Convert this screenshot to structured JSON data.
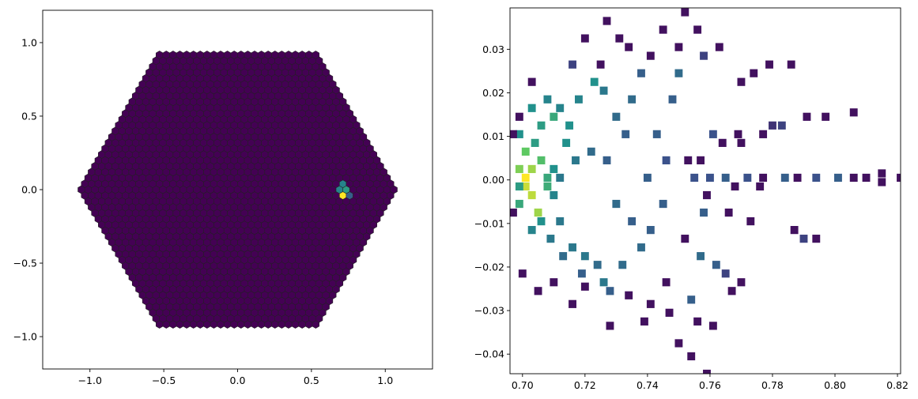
{
  "chart_data": [
    {
      "type": "scatter",
      "subtype": "hexagonal-camera-pixel-map",
      "title": "",
      "xlabel": "",
      "ylabel": "",
      "xlim": [
        -1.32,
        1.32
      ],
      "ylim": [
        -1.22,
        1.22
      ],
      "xticks": [
        -1.0,
        -0.5,
        0.0,
        0.5,
        1.0
      ],
      "xtick_labels": [
        "−1.0",
        "−0.5",
        "0.0",
        "0.5",
        "1.0"
      ],
      "yticks": [
        -1.0,
        -0.5,
        0.0,
        0.5,
        1.0
      ],
      "ytick_labels": [
        "−1.0",
        "−0.5",
        "0.0",
        "0.5",
        "1.0"
      ],
      "camera_radius": 1.1,
      "pixel_pitch": 0.046,
      "background_value": 0,
      "colormap": "viridis",
      "edge_color": "#222222",
      "bright_pixels": [
        {
          "x": 0.7,
          "y": 0.02,
          "value": 0.45
        },
        {
          "x": 0.74,
          "y": 0.02,
          "value": 0.55
        },
        {
          "x": 0.71,
          "y": -0.02,
          "value": 1.0
        },
        {
          "x": 0.76,
          "y": -0.02,
          "value": 0.3
        }
      ]
    },
    {
      "type": "heatmap",
      "subtype": "2d-histogram",
      "title": "",
      "xlabel": "",
      "ylabel": "",
      "xlim": [
        0.696,
        0.821
      ],
      "ylim": [
        -0.0445,
        0.0395
      ],
      "xticks": [
        0.7,
        0.72,
        0.74,
        0.76,
        0.78,
        0.8,
        0.82
      ],
      "xtick_labels": [
        "0.70",
        "0.72",
        "0.74",
        "0.76",
        "0.78",
        "0.80",
        "0.82"
      ],
      "yticks": [
        0.03,
        0.02,
        0.01,
        0.0,
        -0.01,
        -0.02,
        -0.03,
        -0.04
      ],
      "ytick_labels": [
        "0.03",
        "0.02",
        "0.01",
        "0.00",
        "−0.01",
        "−0.02",
        "−0.03",
        "−0.04"
      ],
      "colormap": "viridis",
      "x_bin_width": 0.0025,
      "y_bin_width": 0.00185,
      "bins": [
        [
          0.701,
          0.0005,
          1.0
        ],
        [
          0.701,
          -0.0015,
          0.92
        ],
        [
          0.703,
          0.0025,
          0.85
        ],
        [
          0.699,
          0.0025,
          0.8
        ],
        [
          0.703,
          -0.0035,
          0.9
        ],
        [
          0.706,
          0.0045,
          0.7
        ],
        [
          0.701,
          0.0065,
          0.75
        ],
        [
          0.704,
          0.0085,
          0.55
        ],
        [
          0.699,
          -0.0055,
          0.6
        ],
        [
          0.705,
          -0.0075,
          0.85
        ],
        [
          0.708,
          0.0005,
          0.6
        ],
        [
          0.708,
          -0.0015,
          0.62
        ],
        [
          0.71,
          0.0025,
          0.5
        ],
        [
          0.71,
          -0.0035,
          0.45
        ],
        [
          0.712,
          0.0005,
          0.4
        ],
        [
          0.699,
          0.0105,
          0.5
        ],
        [
          0.706,
          0.0125,
          0.55
        ],
        [
          0.71,
          0.0145,
          0.6
        ],
        [
          0.703,
          0.0165,
          0.5
        ],
        [
          0.708,
          0.0185,
          0.45
        ],
        [
          0.712,
          0.0165,
          0.45
        ],
        [
          0.715,
          0.0125,
          0.5
        ],
        [
          0.718,
          0.0185,
          0.45
        ],
        [
          0.714,
          0.0085,
          0.5
        ],
        [
          0.717,
          0.0045,
          0.4
        ],
        [
          0.706,
          -0.0095,
          0.5
        ],
        [
          0.703,
          -0.0115,
          0.45
        ],
        [
          0.709,
          -0.0135,
          0.4
        ],
        [
          0.712,
          -0.0095,
          0.4
        ],
        [
          0.716,
          -0.0155,
          0.4
        ],
        [
          0.713,
          -0.0175,
          0.35
        ],
        [
          0.72,
          -0.0175,
          0.4
        ],
        [
          0.724,
          -0.0195,
          0.35
        ],
        [
          0.719,
          -0.0215,
          0.3
        ],
        [
          0.726,
          -0.0235,
          0.4
        ],
        [
          0.723,
          0.0225,
          0.5
        ],
        [
          0.726,
          0.0205,
          0.4
        ],
        [
          0.73,
          0.0145,
          0.35
        ],
        [
          0.733,
          0.0105,
          0.3
        ],
        [
          0.722,
          0.0065,
          0.35
        ],
        [
          0.727,
          0.0045,
          0.3
        ],
        [
          0.73,
          -0.0055,
          0.35
        ],
        [
          0.735,
          -0.0095,
          0.3
        ],
        [
          0.738,
          -0.0155,
          0.35
        ],
        [
          0.741,
          -0.0115,
          0.3
        ],
        [
          0.745,
          -0.0055,
          0.3
        ],
        [
          0.74,
          0.0005,
          0.3
        ],
        [
          0.746,
          0.0045,
          0.25
        ],
        [
          0.743,
          0.0105,
          0.3
        ],
        [
          0.748,
          0.0185,
          0.3
        ],
        [
          0.75,
          0.0245,
          0.35
        ],
        [
          0.738,
          0.0245,
          0.3
        ],
        [
          0.735,
          0.0185,
          0.35
        ],
        [
          0.732,
          -0.0195,
          0.35
        ],
        [
          0.728,
          -0.0255,
          0.3
        ],
        [
          0.716,
          0.0265,
          0.2
        ],
        [
          0.72,
          0.0325,
          0.05
        ],
        [
          0.725,
          0.0265,
          0.05
        ],
        [
          0.731,
          0.0325,
          0.05
        ],
        [
          0.727,
          0.0365,
          0.05
        ],
        [
          0.734,
          0.0305,
          0.05
        ],
        [
          0.741,
          0.0285,
          0.05
        ],
        [
          0.745,
          0.0345,
          0.05
        ],
        [
          0.752,
          0.0385,
          0.05
        ],
        [
          0.756,
          0.0345,
          0.05
        ],
        [
          0.758,
          0.0285,
          0.2
        ],
        [
          0.75,
          0.0305,
          0.05
        ],
        [
          0.763,
          0.0305,
          0.05
        ],
        [
          0.77,
          0.0225,
          0.05
        ],
        [
          0.774,
          0.0245,
          0.05
        ],
        [
          0.779,
          0.0265,
          0.05
        ],
        [
          0.786,
          0.0265,
          0.05
        ],
        [
          0.78,
          0.0125,
          0.15
        ],
        [
          0.783,
          0.0125,
          0.2
        ],
        [
          0.791,
          0.0145,
          0.05
        ],
        [
          0.797,
          0.0145,
          0.05
        ],
        [
          0.806,
          0.0155,
          0.05
        ],
        [
          0.769,
          0.0105,
          0.05
        ],
        [
          0.777,
          0.0105,
          0.05
        ],
        [
          0.761,
          0.0105,
          0.25
        ],
        [
          0.753,
          0.0045,
          0.05
        ],
        [
          0.757,
          0.0045,
          0.05
        ],
        [
          0.764,
          0.0085,
          0.05
        ],
        [
          0.77,
          0.0085,
          0.05
        ],
        [
          0.755,
          0.0005,
          0.25
        ],
        [
          0.76,
          0.0005,
          0.25
        ],
        [
          0.765,
          0.0005,
          0.3
        ],
        [
          0.772,
          0.0005,
          0.25
        ],
        [
          0.777,
          0.0005,
          0.05
        ],
        [
          0.784,
          0.0005,
          0.3
        ],
        [
          0.788,
          0.0005,
          0.05
        ],
        [
          0.794,
          0.0005,
          0.25
        ],
        [
          0.801,
          0.0005,
          0.3
        ],
        [
          0.806,
          0.0005,
          0.05
        ],
        [
          0.81,
          0.0005,
          0.05
        ],
        [
          0.815,
          0.0015,
          0.05
        ],
        [
          0.815,
          -0.0005,
          0.05
        ],
        [
          0.821,
          0.0005,
          0.05
        ],
        [
          0.759,
          -0.0035,
          0.05
        ],
        [
          0.768,
          -0.0015,
          0.05
        ],
        [
          0.776,
          -0.0015,
          0.05
        ],
        [
          0.758,
          -0.0075,
          0.3
        ],
        [
          0.766,
          -0.0075,
          0.05
        ],
        [
          0.773,
          -0.0095,
          0.05
        ],
        [
          0.787,
          -0.0115,
          0.05
        ],
        [
          0.79,
          -0.0135,
          0.2
        ],
        [
          0.794,
          -0.0135,
          0.05
        ],
        [
          0.752,
          -0.0135,
          0.05
        ],
        [
          0.757,
          -0.0175,
          0.35
        ],
        [
          0.762,
          -0.0195,
          0.3
        ],
        [
          0.765,
          -0.0215,
          0.2
        ],
        [
          0.77,
          -0.0235,
          0.05
        ],
        [
          0.767,
          -0.0255,
          0.05
        ],
        [
          0.746,
          -0.0235,
          0.05
        ],
        [
          0.741,
          -0.0285,
          0.05
        ],
        [
          0.734,
          -0.0265,
          0.05
        ],
        [
          0.739,
          -0.0325,
          0.05
        ],
        [
          0.747,
          -0.0305,
          0.05
        ],
        [
          0.754,
          -0.0275,
          0.3
        ],
        [
          0.756,
          -0.0325,
          0.05
        ],
        [
          0.761,
          -0.0335,
          0.05
        ],
        [
          0.75,
          -0.0375,
          0.05
        ],
        [
          0.754,
          -0.0405,
          0.05
        ],
        [
          0.759,
          -0.0445,
          0.05
        ],
        [
          0.728,
          -0.0335,
          0.05
        ],
        [
          0.716,
          -0.0285,
          0.05
        ],
        [
          0.72,
          -0.0245,
          0.05
        ],
        [
          0.705,
          -0.0255,
          0.05
        ],
        [
          0.7,
          -0.0215,
          0.05
        ],
        [
          0.71,
          -0.0235,
          0.05
        ],
        [
          0.699,
          -0.0015,
          0.55
        ],
        [
          0.697,
          -0.0075,
          0.05
        ],
        [
          0.697,
          0.0105,
          0.05
        ],
        [
          0.699,
          0.0145,
          0.05
        ],
        [
          0.703,
          0.0225,
          0.05
        ]
      ]
    }
  ]
}
